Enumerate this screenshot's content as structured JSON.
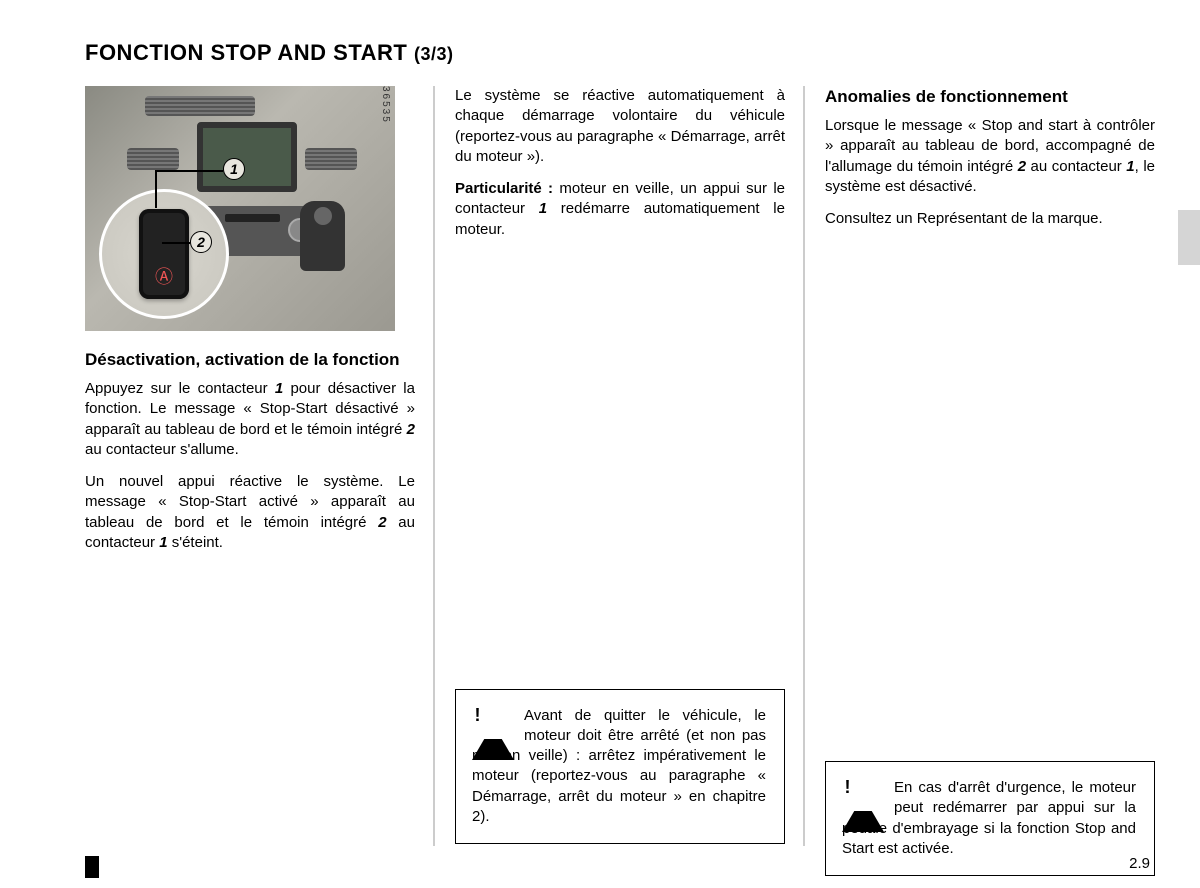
{
  "title": "FONCTION STOP AND START",
  "part": "(3/3)",
  "figure": {
    "code": "36535",
    "callout1": "1",
    "callout2": "2"
  },
  "col1": {
    "heading": "Désactivation, activation de la fonction",
    "p1_a": "Appuyez sur le contacteur ",
    "p1_ref1": "1",
    "p1_b": " pour dé­sactiver la fonction. Le message « Stop-Start désactivé » apparaît au ta­bleau de bord et le témoin intégré ",
    "p1_ref2": "2",
    "p1_c": " au contacteur s'allume.",
    "p2_a": "Un nouvel appui réactive le système. Le message « Stop-Start activé » ap­paraît au tableau de bord et le témoin intégré ",
    "p2_ref1": "2",
    "p2_b": " au contacteur ",
    "p2_ref2": "1",
    "p2_c": " s'éteint."
  },
  "col2": {
    "p1": "Le système se réactive automatique­ment à chaque démarrage volontaire du véhicule (reportez-vous au paragraphe « Démarrage, arrêt du moteur »).",
    "p2_lead": "Particularité :",
    "p2_a": " moteur en veille, un appui sur le contacteur ",
    "p2_ref": "1",
    "p2_b": " redémarre au­tomatiquement le moteur.",
    "warning": "Avant de quitter le véhi­cule, le moteur doit être arrêté (et non pas mis en veille) : arrêtez impérative­ment le moteur (reportez-vous au paragraphe « Démarrage, arrêt du moteur » en chapitre 2)."
  },
  "col3": {
    "heading": "Anomalies de fonctionnement",
    "p1_a": "Lorsque le message « Stop and start à contrôler » apparaît au tableau de bord, accompagné de l'allumage du témoin intégré ",
    "p1_ref1": "2",
    "p1_b": " au contacteur ",
    "p1_ref2": "1",
    "p1_c": ", le système est désactivé.",
    "p2": "Consultez un Représentant de la marque.",
    "warning": "En cas d'arrêt d'urgence, le moteur peut redémarrer par appui sur la pédale d'em­brayage si la fonction Stop and Start est activée."
  },
  "pagenum": "2.9"
}
